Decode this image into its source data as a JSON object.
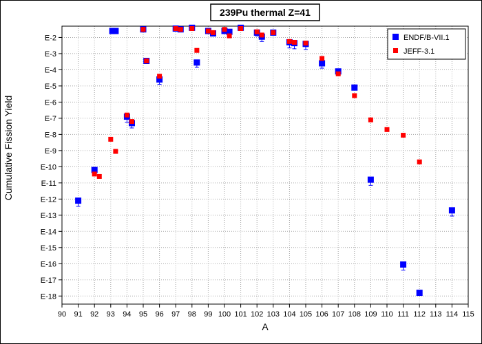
{
  "chart_data": {
    "type": "scatter",
    "title": "239Pu thermal Z=41",
    "xlabel": "A",
    "ylabel": "Cumulative Fission Yield",
    "xlim": [
      90,
      115
    ],
    "ylim_exponent": [
      -18.5,
      -1.3
    ],
    "y_scale": "log",
    "x_ticks": [
      90,
      91,
      92,
      93,
      94,
      95,
      96,
      97,
      98,
      99,
      100,
      101,
      102,
      103,
      104,
      105,
      106,
      107,
      108,
      109,
      110,
      111,
      112,
      113,
      114,
      115
    ],
    "y_ticks": [
      {
        "label": "E-2",
        "exp": -2
      },
      {
        "label": "E-3",
        "exp": -3
      },
      {
        "label": "E-4",
        "exp": -4
      },
      {
        "label": "E-5",
        "exp": -5
      },
      {
        "label": "E-6",
        "exp": -6
      },
      {
        "label": "E-7",
        "exp": -7
      },
      {
        "label": "E-8",
        "exp": -8
      },
      {
        "label": "E-9",
        "exp": -9
      },
      {
        "label": "E-10",
        "exp": -10
      },
      {
        "label": "E-11",
        "exp": -11
      },
      {
        "label": "E-12",
        "exp": -12
      },
      {
        "label": "E-13",
        "exp": -13
      },
      {
        "label": "E-14",
        "exp": -14
      },
      {
        "label": "E-15",
        "exp": -15
      },
      {
        "label": "E-16",
        "exp": -16
      },
      {
        "label": "E-17",
        "exp": -17
      },
      {
        "label": "E-18",
        "exp": -18
      }
    ],
    "grid": true,
    "legend_position": "top-right",
    "series": [
      {
        "name": "ENDF/B-VII.1",
        "color": "#0000ff",
        "marker": "square",
        "points": [
          {
            "x": 91,
            "exp": -12.1,
            "err": 0.35
          },
          {
            "x": 92,
            "exp": -10.2,
            "err": 0.3
          },
          {
            "x": 93.1,
            "exp": -1.6,
            "err": 0
          },
          {
            "x": 93.3,
            "exp": -1.6,
            "err": 0
          },
          {
            "x": 94,
            "exp": -6.9,
            "err": 0.35
          },
          {
            "x": 94.3,
            "exp": -7.3,
            "err": 0.3
          },
          {
            "x": 95,
            "exp": -1.5,
            "err": 0
          },
          {
            "x": 95.2,
            "exp": -3.45,
            "err": 0.1
          },
          {
            "x": 96,
            "exp": -4.6,
            "err": 0.3
          },
          {
            "x": 97,
            "exp": -1.45,
            "err": 0
          },
          {
            "x": 97.3,
            "exp": -1.5,
            "err": 0
          },
          {
            "x": 98,
            "exp": -1.4,
            "err": 0
          },
          {
            "x": 98.3,
            "exp": -3.55,
            "err": 0.3
          },
          {
            "x": 99,
            "exp": -1.6,
            "err": 0
          },
          {
            "x": 99.3,
            "exp": -1.75,
            "err": 0.1
          },
          {
            "x": 100,
            "exp": -1.6,
            "err": 0
          },
          {
            "x": 100.3,
            "exp": -1.65,
            "err": 0.15
          },
          {
            "x": 101,
            "exp": -1.4,
            "err": 0
          },
          {
            "x": 102,
            "exp": -1.7,
            "err": 0.2
          },
          {
            "x": 102.3,
            "exp": -1.95,
            "err": 0.3
          },
          {
            "x": 103,
            "exp": -1.7,
            "err": 0
          },
          {
            "x": 104,
            "exp": -2.3,
            "err": 0.35
          },
          {
            "x": 104.3,
            "exp": -2.35,
            "err": 0.35
          },
          {
            "x": 105,
            "exp": -2.4,
            "err": 0.35
          },
          {
            "x": 106,
            "exp": -3.6,
            "err": 0.3
          },
          {
            "x": 107,
            "exp": -4.1,
            "err": 0.25
          },
          {
            "x": 108,
            "exp": -5.1,
            "err": 0.15
          },
          {
            "x": 109,
            "exp": -10.8,
            "err": 0.35
          },
          {
            "x": 111,
            "exp": -16.05,
            "err": 0.35
          },
          {
            "x": 112,
            "exp": -17.8,
            "err": 0.15
          },
          {
            "x": 114,
            "exp": -12.7,
            "err": 0.35
          }
        ]
      },
      {
        "name": "JEFF-3.1",
        "color": "#ff0000",
        "marker": "square",
        "points": [
          {
            "x": 92,
            "exp": -10.45
          },
          {
            "x": 92.3,
            "exp": -10.6
          },
          {
            "x": 93,
            "exp": -8.3
          },
          {
            "x": 93.3,
            "exp": -9.05
          },
          {
            "x": 94,
            "exp": -6.8
          },
          {
            "x": 94.3,
            "exp": -7.2
          },
          {
            "x": 95,
            "exp": -1.5
          },
          {
            "x": 95.2,
            "exp": -3.45
          },
          {
            "x": 96,
            "exp": -4.4
          },
          {
            "x": 97,
            "exp": -1.45
          },
          {
            "x": 97.3,
            "exp": -1.5
          },
          {
            "x": 98,
            "exp": -1.45
          },
          {
            "x": 98.3,
            "exp": -2.8
          },
          {
            "x": 99,
            "exp": -1.6
          },
          {
            "x": 99.3,
            "exp": -1.7
          },
          {
            "x": 100,
            "exp": -1.5
          },
          {
            "x": 100.3,
            "exp": -1.9
          },
          {
            "x": 101,
            "exp": -1.45
          },
          {
            "x": 102,
            "exp": -1.65
          },
          {
            "x": 102.3,
            "exp": -1.85
          },
          {
            "x": 103,
            "exp": -1.7
          },
          {
            "x": 104,
            "exp": -2.25
          },
          {
            "x": 104.3,
            "exp": -2.3
          },
          {
            "x": 105,
            "exp": -2.35
          },
          {
            "x": 106,
            "exp": -3.3
          },
          {
            "x": 107,
            "exp": -4.25
          },
          {
            "x": 108,
            "exp": -5.6
          },
          {
            "x": 109,
            "exp": -7.1
          },
          {
            "x": 110,
            "exp": -7.7
          },
          {
            "x": 111,
            "exp": -8.05
          },
          {
            "x": 112,
            "exp": -9.7
          }
        ]
      }
    ]
  }
}
